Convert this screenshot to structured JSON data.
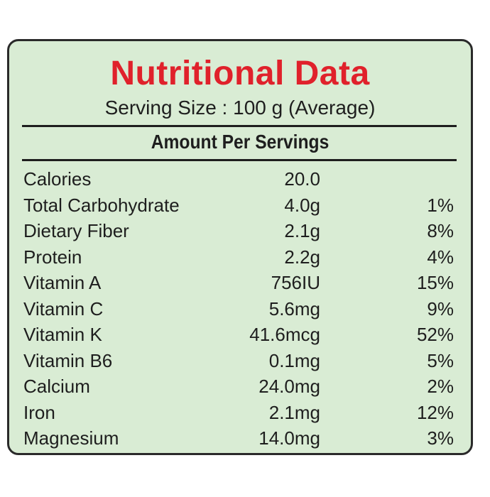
{
  "title": "Nutritional Data",
  "serving_size": "Serving Size : 100 g (Average)",
  "section_heading": "Amount Per Servings",
  "nutrients": [
    {
      "name": "Calories",
      "amount": "20.0",
      "dv": ""
    },
    {
      "name": "Total Carbohydrate",
      "amount": "4.0g",
      "dv": "1%"
    },
    {
      "name": "Dietary Fiber",
      "amount": "2.1g",
      "dv": "8%"
    },
    {
      "name": "Protein",
      "amount": "2.2g",
      "dv": "4%"
    },
    {
      "name": "Vitamin A",
      "amount": "756IU",
      "dv": "15%"
    },
    {
      "name": "Vitamin C",
      "amount": "5.6mg",
      "dv": "9%"
    },
    {
      "name": "Vitamin K",
      "amount": "41.6mcg",
      "dv": "52%"
    },
    {
      "name": "Vitamin B6",
      "amount": "0.1mg",
      "dv": "5%"
    },
    {
      "name": "Calcium",
      "amount": "24.0mg",
      "dv": "2%"
    },
    {
      "name": "Iron",
      "amount": "2.1mg",
      "dv": "12%"
    },
    {
      "name": "Magnesium",
      "amount": "14.0mg",
      "dv": "3%"
    }
  ],
  "colors": {
    "title": "#e0212b",
    "panel_background": "#d9ecd4",
    "text": "#1e1e1e",
    "border": "#2a2a2a"
  }
}
